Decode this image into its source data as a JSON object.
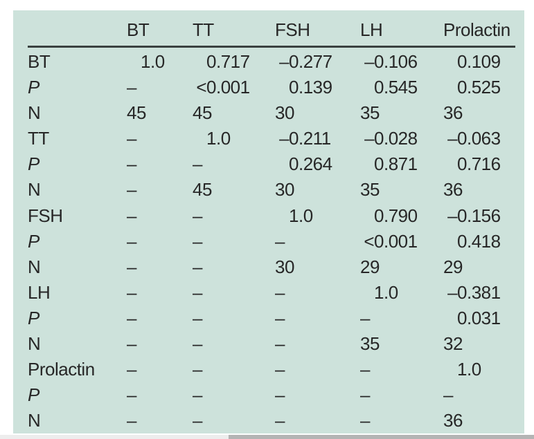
{
  "table": {
    "columns": [
      "",
      "BT",
      "TT",
      "FSH",
      "LH",
      "Prolactin"
    ],
    "rows": [
      {
        "label": "BT",
        "italic": false,
        "cells": [
          "1.0",
          "0.717",
          "–0.277",
          "–0.106",
          "0.109"
        ]
      },
      {
        "label": "P",
        "italic": true,
        "cells": [
          "–",
          "<0.001",
          "0.139",
          "0.545",
          "0.525"
        ]
      },
      {
        "label": "N",
        "italic": false,
        "cells": [
          "45",
          "45",
          "30",
          "35",
          "36"
        ]
      },
      {
        "label": "TT",
        "italic": false,
        "cells": [
          "–",
          "1.0",
          "–0.211",
          "–0.028",
          "–0.063"
        ]
      },
      {
        "label": "P",
        "italic": true,
        "cells": [
          "–",
          "–",
          "0.264",
          "0.871",
          "0.716"
        ]
      },
      {
        "label": "N",
        "italic": false,
        "cells": [
          "–",
          "45",
          "30",
          "35",
          "36"
        ]
      },
      {
        "label": "FSH",
        "italic": false,
        "cells": [
          "–",
          "–",
          "1.0",
          "0.790",
          "–0.156"
        ]
      },
      {
        "label": "P",
        "italic": true,
        "cells": [
          "–",
          "–",
          "–",
          "<0.001",
          "0.418"
        ]
      },
      {
        "label": "N",
        "italic": false,
        "cells": [
          "–",
          "–",
          "30",
          "29",
          "29"
        ]
      },
      {
        "label": "LH",
        "italic": false,
        "cells": [
          "–",
          "–",
          "–",
          "1.0",
          "–0.381"
        ]
      },
      {
        "label": "P",
        "italic": true,
        "cells": [
          "–",
          "–",
          "–",
          "–",
          "0.031"
        ]
      },
      {
        "label": "N",
        "italic": false,
        "cells": [
          "–",
          "–",
          "–",
          "35",
          "32"
        ]
      },
      {
        "label": "Prolactin",
        "italic": false,
        "cells": [
          "–",
          "–",
          "–",
          "–",
          "1.0"
        ]
      },
      {
        "label": "P",
        "italic": true,
        "cells": [
          "–",
          "–",
          "–",
          "–",
          "–"
        ]
      },
      {
        "label": "N",
        "italic": false,
        "cells": [
          "–",
          "–",
          "–",
          "–",
          "36"
        ]
      }
    ]
  },
  "colors": {
    "panel_bg": "#cde2db",
    "text": "#272727",
    "header_rule": "#39413f",
    "scrollbar_track": "#ededed",
    "scrollbar_thumb": "#b4b4b4"
  }
}
